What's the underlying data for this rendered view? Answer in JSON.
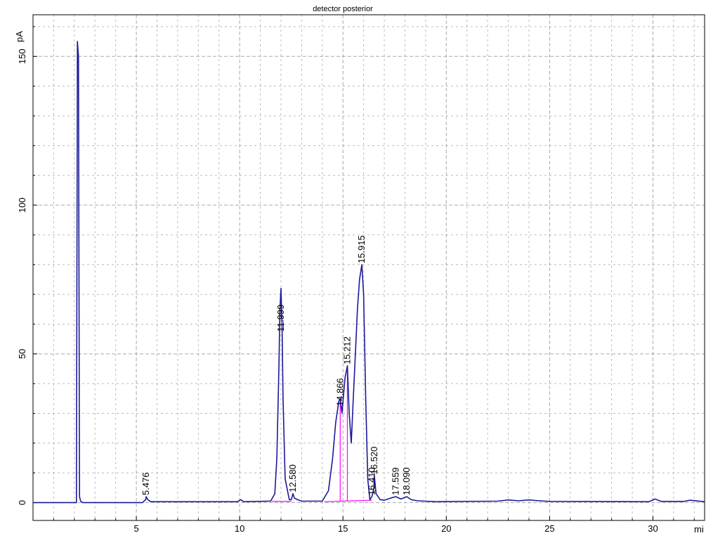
{
  "chart_data": {
    "type": "line",
    "title": "detector posterior",
    "ylabel": "pA",
    "xlabel": "mi",
    "xlim": [
      0,
      32.5
    ],
    "ylim": [
      -6,
      164
    ],
    "grid": true,
    "x_major_ticks": [
      5,
      10,
      15,
      20,
      25,
      30
    ],
    "y_major_ticks": [
      0,
      50,
      100,
      150
    ],
    "x_tick_labels": [
      "5",
      "10",
      "15",
      "20",
      "25",
      "30"
    ],
    "y_tick_labels": [
      "0",
      "50",
      "100",
      "150"
    ],
    "colors": {
      "signal": "#1a1a9a",
      "baseline": "#ff00ff",
      "grid": "#a0a0a0",
      "frame": "#000000"
    },
    "series": [
      {
        "x": [
          0,
          2.1,
          2.15,
          2.2,
          2.25,
          2.3,
          2.4,
          5.3,
          5.45,
          5.476,
          5.55,
          5.7,
          9.9,
          10.05,
          10.2,
          11.5,
          11.7,
          11.8,
          11.9,
          11.95,
          12.0,
          12.05,
          12.1,
          12.2,
          12.4,
          12.5,
          12.58,
          12.65,
          12.8,
          13.0,
          14.0,
          14.3,
          14.5,
          14.65,
          14.8,
          14.866,
          14.95,
          15.05,
          15.1,
          15.212,
          15.3,
          15.4,
          15.5,
          15.6,
          15.7,
          15.8,
          15.915,
          16.0,
          16.1,
          16.2,
          16.3,
          16.4,
          16.5,
          16.52,
          16.6,
          16.7,
          16.8,
          17.0,
          17.3,
          17.559,
          17.8,
          18.09,
          18.3,
          18.6,
          19.5,
          22.5,
          23.0,
          23.5,
          24.0,
          24.5,
          25.0,
          29.8,
          30.1,
          30.4,
          31.5,
          31.8,
          32.5
        ],
        "y": [
          0,
          0,
          155,
          150,
          2,
          0.5,
          0,
          0,
          1,
          2,
          1,
          0.3,
          0.3,
          1,
          0.3,
          0.5,
          3,
          15,
          45,
          65,
          72,
          60,
          35,
          8,
          1,
          1,
          3,
          1.5,
          1,
          0.5,
          0.5,
          4,
          15,
          27,
          34,
          35,
          30,
          38,
          42,
          46,
          30,
          20,
          35,
          50,
          65,
          75,
          80,
          70,
          35,
          8,
          1,
          2,
          5,
          9,
          3,
          2,
          1,
          0.8,
          1.5,
          2,
          1.2,
          2,
          1,
          0.6,
          0.3,
          0.5,
          0.9,
          0.6,
          0.9,
          0.6,
          0.4,
          0.3,
          1.2,
          0.4,
          0.4,
          0.8,
          0.3
        ]
      }
    ],
    "peak_labels": [
      {
        "x": 5.476,
        "y": 2,
        "label": "5.476"
      },
      {
        "x": 11.999,
        "y": 57,
        "label": "11.999"
      },
      {
        "x": 12.58,
        "y": 3,
        "label": "12.580"
      },
      {
        "x": 14.866,
        "y": 32,
        "label": "14.866"
      },
      {
        "x": 15.212,
        "y": 46,
        "label": "15.212"
      },
      {
        "x": 15.915,
        "y": 80,
        "label": "15.915"
      },
      {
        "x": 16.52,
        "y": 9,
        "label": "16.520"
      },
      {
        "x": 16.41,
        "y": 2,
        "label": "16.410"
      },
      {
        "x": 17.559,
        "y": 2,
        "label": "17.559"
      },
      {
        "x": 18.09,
        "y": 2,
        "label": "18.090"
      }
    ],
    "baseline_drops": [
      14.866,
      15.212
    ]
  }
}
